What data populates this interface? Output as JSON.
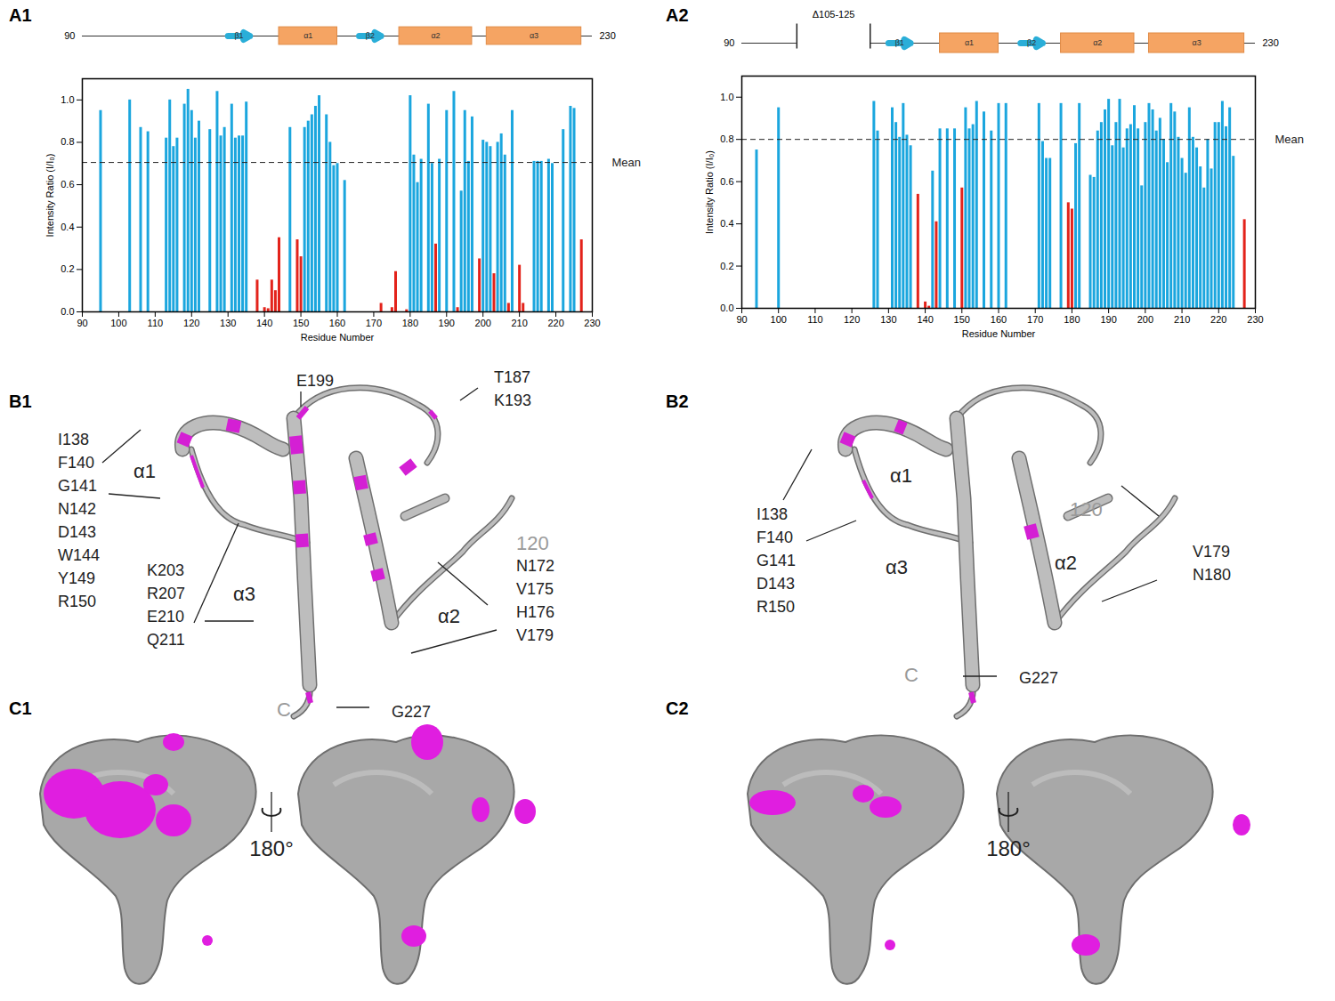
{
  "chart_data": [
    {
      "type": "bar",
      "panel": "A1",
      "x_label": "Residue Number",
      "y_label": "Intensity Ratio (I/I₀)",
      "x": [
        95,
        103,
        106,
        108,
        113,
        114,
        115,
        116,
        118,
        119,
        120,
        121,
        122,
        125,
        127,
        128,
        129,
        131,
        132,
        133,
        134,
        135,
        138,
        140,
        141,
        142,
        143,
        144,
        147,
        149,
        150,
        151,
        152,
        153,
        154,
        155,
        157,
        158,
        159,
        160,
        162,
        172,
        175,
        176,
        179,
        180,
        181,
        182,
        183,
        185,
        186,
        187,
        188,
        190,
        192,
        193,
        194,
        195,
        196,
        197,
        199,
        200,
        201,
        202,
        203,
        204,
        205,
        206,
        207,
        208,
        210,
        211,
        214,
        215,
        216,
        218,
        219,
        222,
        224,
        225,
        227
      ],
      "values": [
        0.95,
        1.0,
        0.87,
        0.85,
        0.82,
        1.0,
        0.78,
        0.82,
        0.98,
        1.05,
        0.95,
        0.82,
        0.9,
        0.86,
        1.04,
        0.83,
        0.87,
        0.98,
        0.82,
        0.83,
        0.83,
        0.99,
        0.15,
        0.02,
        0.015,
        0.15,
        0.1,
        0.35,
        0.87,
        0.34,
        0.26,
        0.87,
        0.9,
        0.93,
        0.97,
        1.02,
        0.93,
        0.8,
        0.69,
        0.7,
        0.62,
        0.04,
        0.02,
        0.19,
        0.01,
        1.02,
        0.74,
        0.61,
        0.72,
        0.98,
        0.7,
        0.32,
        0.72,
        0.95,
        1.04,
        0.02,
        0.57,
        0.95,
        0.71,
        0.92,
        0.25,
        0.81,
        0.8,
        0.78,
        0.18,
        0.8,
        0.84,
        0.74,
        0.04,
        0.95,
        0.22,
        0.04,
        0.71,
        0.71,
        0.71,
        0.72,
        0.7,
        0.86,
        0.97,
        0.96,
        0.34
      ],
      "colors": [
        "#1ba6de",
        "#1ba6de",
        "#1ba6de",
        "#1ba6de",
        "#1ba6de",
        "#1ba6de",
        "#1ba6de",
        "#1ba6de",
        "#1ba6de",
        "#1ba6de",
        "#1ba6de",
        "#1ba6de",
        "#1ba6de",
        "#1ba6de",
        "#1ba6de",
        "#1ba6de",
        "#1ba6de",
        "#1ba6de",
        "#1ba6de",
        "#1ba6de",
        "#1ba6de",
        "#1ba6de",
        "#e3231b",
        "#e3231b",
        "#e3231b",
        "#e3231b",
        "#e3231b",
        "#e3231b",
        "#1ba6de",
        "#e3231b",
        "#e3231b",
        "#1ba6de",
        "#1ba6de",
        "#1ba6de",
        "#1ba6de",
        "#1ba6de",
        "#1ba6de",
        "#1ba6de",
        "#1ba6de",
        "#1ba6de",
        "#1ba6de",
        "#e3231b",
        "#e3231b",
        "#e3231b",
        "#e3231b",
        "#1ba6de",
        "#1ba6de",
        "#1ba6de",
        "#1ba6de",
        "#1ba6de",
        "#1ba6de",
        "#e3231b",
        "#1ba6de",
        "#1ba6de",
        "#1ba6de",
        "#e3231b",
        "#1ba6de",
        "#1ba6de",
        "#1ba6de",
        "#1ba6de",
        "#e3231b",
        "#1ba6de",
        "#1ba6de",
        "#1ba6de",
        "#e3231b",
        "#1ba6de",
        "#1ba6de",
        "#1ba6de",
        "#e3231b",
        "#1ba6de",
        "#e3231b",
        "#e3231b",
        "#1ba6de",
        "#1ba6de",
        "#1ba6de",
        "#1ba6de",
        "#1ba6de",
        "#1ba6de",
        "#1ba6de",
        "#1ba6de",
        "#e3231b"
      ],
      "mean": 0.705,
      "mean_label": "Mean",
      "xlim": [
        90,
        230
      ],
      "xticks": [
        90,
        100,
        110,
        120,
        130,
        140,
        150,
        160,
        170,
        180,
        190,
        200,
        210,
        220,
        230
      ],
      "ylim": [
        0,
        1.1
      ],
      "yticks": [
        0,
        0.2,
        0.4,
        0.6,
        0.8,
        1
      ]
    },
    {
      "type": "bar",
      "panel": "A2",
      "x_label": "Residue Number",
      "y_label": "Intensity Ratio (I/I₀)",
      "x": [
        94,
        100,
        126,
        127,
        131,
        132,
        133,
        134,
        135,
        136,
        138,
        140,
        141,
        142,
        143,
        144,
        146,
        148,
        150,
        151,
        152,
        153,
        154,
        156,
        158,
        160,
        162,
        171,
        172,
        173,
        174,
        177,
        179,
        180,
        181,
        182,
        185,
        186,
        187,
        188,
        189,
        190,
        191,
        192,
        193,
        194,
        195,
        196,
        197,
        198,
        199,
        200,
        201,
        202,
        203,
        204,
        205,
        206,
        207,
        208,
        209,
        210,
        211,
        212,
        213,
        214,
        215,
        216,
        217,
        218,
        219,
        220,
        221,
        222,
        223,
        224,
        227
      ],
      "values": [
        0.75,
        0.95,
        0.98,
        0.84,
        0.95,
        0.88,
        0.81,
        0.97,
        0.82,
        0.77,
        0.54,
        0.03,
        0.01,
        0.65,
        0.41,
        0.85,
        0.85,
        0.85,
        0.57,
        0.95,
        0.85,
        0.87,
        0.98,
        0.93,
        0.84,
        0.97,
        0.97,
        0.97,
        0.79,
        0.71,
        0.71,
        0.97,
        0.5,
        0.47,
        0.78,
        0.97,
        0.63,
        0.62,
        0.84,
        0.88,
        0.94,
        0.99,
        0.77,
        0.88,
        0.99,
        0.76,
        0.85,
        0.87,
        0.96,
        0.85,
        0.58,
        0.88,
        0.97,
        0.94,
        0.84,
        0.9,
        0.8,
        0.69,
        0.97,
        0.93,
        0.81,
        0.71,
        0.64,
        0.95,
        0.81,
        0.76,
        0.67,
        0.57,
        0.8,
        0.66,
        0.88,
        0.88,
        0.98,
        0.86,
        0.95,
        0.72,
        0.42
      ],
      "colors": [
        "#1ba6de",
        "#1ba6de",
        "#1ba6de",
        "#1ba6de",
        "#1ba6de",
        "#1ba6de",
        "#1ba6de",
        "#1ba6de",
        "#1ba6de",
        "#1ba6de",
        "#e3231b",
        "#e3231b",
        "#e3231b",
        "#1ba6de",
        "#e3231b",
        "#1ba6de",
        "#1ba6de",
        "#1ba6de",
        "#e3231b",
        "#1ba6de",
        "#1ba6de",
        "#1ba6de",
        "#1ba6de",
        "#1ba6de",
        "#1ba6de",
        "#1ba6de",
        "#1ba6de",
        "#1ba6de",
        "#1ba6de",
        "#1ba6de",
        "#1ba6de",
        "#1ba6de",
        "#e3231b",
        "#e3231b",
        "#1ba6de",
        "#1ba6de",
        "#1ba6de",
        "#1ba6de",
        "#1ba6de",
        "#1ba6de",
        "#1ba6de",
        "#1ba6de",
        "#1ba6de",
        "#1ba6de",
        "#1ba6de",
        "#1ba6de",
        "#1ba6de",
        "#1ba6de",
        "#1ba6de",
        "#1ba6de",
        "#1ba6de",
        "#1ba6de",
        "#1ba6de",
        "#1ba6de",
        "#1ba6de",
        "#1ba6de",
        "#1ba6de",
        "#1ba6de",
        "#1ba6de",
        "#1ba6de",
        "#1ba6de",
        "#1ba6de",
        "#1ba6de",
        "#1ba6de",
        "#1ba6de",
        "#1ba6de",
        "#1ba6de",
        "#1ba6de",
        "#1ba6de",
        "#1ba6de",
        "#1ba6de",
        "#1ba6de",
        "#1ba6de",
        "#1ba6de",
        "#1ba6de",
        "#1ba6de",
        "#e3231b"
      ],
      "mean": 0.8,
      "mean_label": "Mean",
      "xlim": [
        90,
        230
      ],
      "xticks": [
        90,
        100,
        110,
        120,
        130,
        140,
        150,
        160,
        170,
        180,
        190,
        200,
        210,
        220,
        230
      ],
      "ylim": [
        0,
        1.1
      ],
      "yticks": [
        0,
        0.2,
        0.4,
        0.6,
        0.8,
        1
      ]
    }
  ],
  "diagrams": {
    "topology_A1": {
      "start_label": "90",
      "end_label": "230",
      "elements": [
        {
          "label": "β1",
          "kind": "strand",
          "start": 130,
          "end": 136
        },
        {
          "label": "α1",
          "kind": "helix",
          "start": 144,
          "end": 160
        },
        {
          "label": "β2",
          "kind": "strand",
          "start": 166,
          "end": 172
        },
        {
          "label": "α2",
          "kind": "helix",
          "start": 177,
          "end": 197
        },
        {
          "label": "α3",
          "kind": "helix",
          "start": 201,
          "end": 227
        }
      ]
    },
    "topology_A2": {
      "start_label": "90",
      "end_label": "230",
      "deletion": {
        "label": "Δ105-125",
        "start": 105,
        "end": 125
      },
      "elements": [
        {
          "label": "β1",
          "kind": "strand",
          "start": 130,
          "end": 136
        },
        {
          "label": "α1",
          "kind": "helix",
          "start": 144,
          "end": 160
        },
        {
          "label": "β2",
          "kind": "strand",
          "start": 166,
          "end": 172
        },
        {
          "label": "α2",
          "kind": "helix",
          "start": 177,
          "end": 197
        },
        {
          "label": "α3",
          "kind": "helix",
          "start": 201,
          "end": 227
        }
      ]
    },
    "B1": {
      "panel": "B1",
      "helix_labels": [
        "α1",
        "α3",
        "α2"
      ],
      "residue_marker": "120",
      "terminus": "C",
      "label_groups": [
        [
          "I138",
          "F140",
          "G141",
          "N142",
          "D143",
          "W144",
          "Y149",
          "R150"
        ],
        [
          "K203",
          "R207",
          "E210",
          "Q211"
        ],
        [
          "E199"
        ],
        [
          "T187",
          "K193"
        ],
        [
          "N172",
          "V175",
          "H176",
          "V179"
        ],
        [
          "G227"
        ]
      ]
    },
    "B2": {
      "panel": "B2",
      "helix_labels": [
        "α1",
        "α3",
        "α2"
      ],
      "residue_marker": "120",
      "terminus": "C",
      "label_groups": [
        [
          "I138",
          "F140",
          "G141",
          "D143",
          "R150"
        ],
        [
          "V179",
          "N180"
        ],
        [
          "G227"
        ]
      ]
    },
    "C1": {
      "panel": "C1",
      "rotation": "180°"
    },
    "C2": {
      "panel": "C2",
      "rotation": "180°"
    }
  }
}
